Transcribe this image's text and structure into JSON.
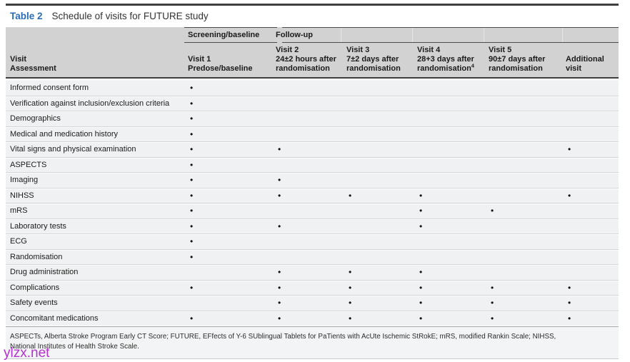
{
  "table": {
    "label": "Table 2",
    "caption": "Schedule of visits for FUTURE study",
    "spanners": [
      {
        "label": "Screening/baseline"
      },
      {
        "label": "Follow-up"
      }
    ],
    "row_header": {
      "lines": [
        "Visit",
        "Assessment"
      ]
    },
    "columns": [
      {
        "id": "visit-1",
        "lines": [
          "Visit 1",
          "Predose/baseline"
        ],
        "sup": ""
      },
      {
        "id": "visit-2",
        "lines": [
          "Visit 2",
          "24±2 hours after",
          "randomisation"
        ],
        "sup": ""
      },
      {
        "id": "visit-3",
        "lines": [
          "Visit 3",
          "7±2 days after",
          "randomisation"
        ],
        "sup": ""
      },
      {
        "id": "visit-4",
        "lines": [
          "Visit 4",
          "28+3 days after",
          "randomisation"
        ],
        "sup": "4"
      },
      {
        "id": "visit-5",
        "lines": [
          "Visit 5",
          "90±7 days after",
          "randomisation"
        ],
        "sup": ""
      },
      {
        "id": "additional-visit",
        "lines": [
          "Additional",
          "visit"
        ],
        "sup": ""
      }
    ],
    "marker": "•",
    "rows": [
      {
        "assessment": "Informed consent form",
        "visits": [
          1,
          0,
          0,
          0,
          0,
          0
        ]
      },
      {
        "assessment": "Verification against inclusion/exclusion criteria",
        "visits": [
          1,
          0,
          0,
          0,
          0,
          0
        ]
      },
      {
        "assessment": "Demographics",
        "visits": [
          1,
          0,
          0,
          0,
          0,
          0
        ]
      },
      {
        "assessment": "Medical and medication history",
        "visits": [
          1,
          0,
          0,
          0,
          0,
          0
        ]
      },
      {
        "assessment": "Vital signs and physical examination",
        "visits": [
          1,
          1,
          0,
          0,
          0,
          1
        ]
      },
      {
        "assessment": "ASPECTS",
        "visits": [
          1,
          0,
          0,
          0,
          0,
          0
        ]
      },
      {
        "assessment": "Imaging",
        "visits": [
          1,
          1,
          0,
          0,
          0,
          0
        ]
      },
      {
        "assessment": "NIHSS",
        "visits": [
          1,
          1,
          1,
          1,
          0,
          1
        ]
      },
      {
        "assessment": "mRS",
        "visits": [
          1,
          0,
          0,
          1,
          1,
          0
        ]
      },
      {
        "assessment": "Laboratory tests",
        "visits": [
          1,
          1,
          0,
          1,
          0,
          0
        ]
      },
      {
        "assessment": "ECG",
        "visits": [
          1,
          0,
          0,
          0,
          0,
          0
        ]
      },
      {
        "assessment": "Randomisation",
        "visits": [
          1,
          0,
          0,
          0,
          0,
          0
        ]
      },
      {
        "assessment": "Drug administration",
        "visits": [
          0,
          1,
          1,
          1,
          0,
          0
        ]
      },
      {
        "assessment": "Complications",
        "visits": [
          1,
          1,
          1,
          1,
          1,
          1
        ]
      },
      {
        "assessment": "Safety events",
        "visits": [
          0,
          1,
          1,
          1,
          1,
          1
        ]
      },
      {
        "assessment": "Concomitant medications",
        "visits": [
          1,
          1,
          1,
          1,
          1,
          1
        ]
      }
    ],
    "footnote_lines": [
      "ASPECTs, Alberta Stroke Program Early CT Score; FUTURE, EFfects of Y-6 SUblingual Tablets for PaTients with AcUte Ischemic StRokE; mRS, modified Rankin Scale; NIHSS,",
      "National Institutes of Health Stroke Scale."
    ]
  },
  "watermark": "ylzx.net",
  "colors": {
    "accent_blue": "#2a6db5",
    "header_bg": "#d2d2d2",
    "row_bg": "#eff1f2",
    "rule_dark": "#3e3e3e",
    "watermark": "#b531cf"
  }
}
